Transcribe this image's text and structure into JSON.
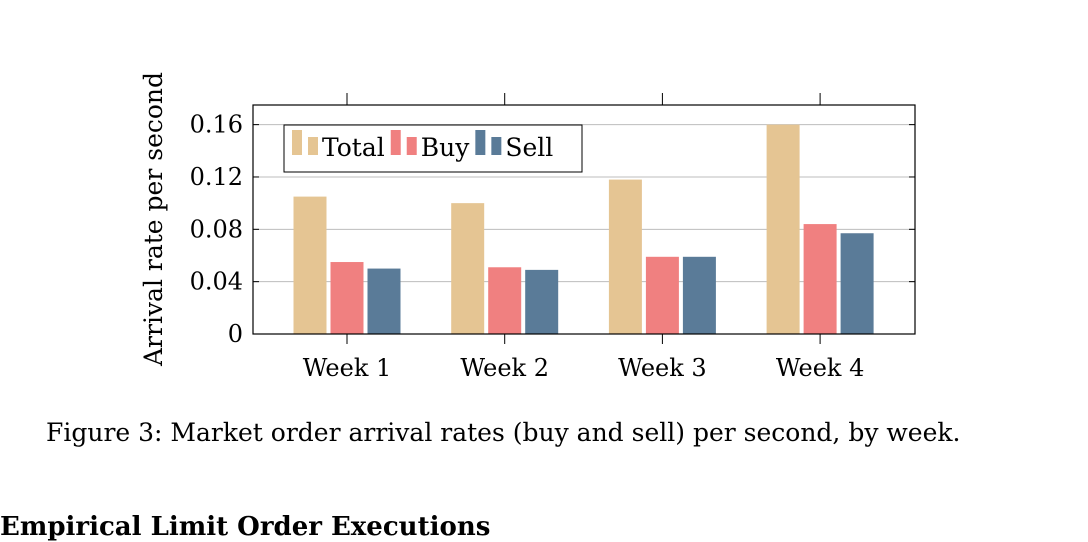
{
  "chart_data": {
    "type": "bar",
    "categories": [
      "Week 1",
      "Week 2",
      "Week 3",
      "Week 4"
    ],
    "series": [
      {
        "name": "Total",
        "values": [
          0.105,
          0.1,
          0.118,
          0.16
        ],
        "color": "#e5c593"
      },
      {
        "name": "Buy",
        "values": [
          0.055,
          0.051,
          0.059,
          0.084
        ],
        "color": "#f08080"
      },
      {
        "name": "Sell",
        "values": [
          0.05,
          0.049,
          0.059,
          0.077
        ],
        "color": "#5a7b98"
      }
    ],
    "yticks": [
      0,
      0.04,
      0.08,
      0.12,
      0.16
    ],
    "ytick_labels": [
      "0",
      "0.04",
      "0.08",
      "0.12",
      "0.16"
    ],
    "ylim": [
      0,
      0.175
    ],
    "xlabel": "",
    "ylabel": "Arrival rate per second",
    "grid": "y-major",
    "legend_position": "top-left"
  },
  "caption": "Figure 3: Market order arrival rates (buy and sell) per second, by week.",
  "next_section_heading": "Empirical Limit Order Executions"
}
